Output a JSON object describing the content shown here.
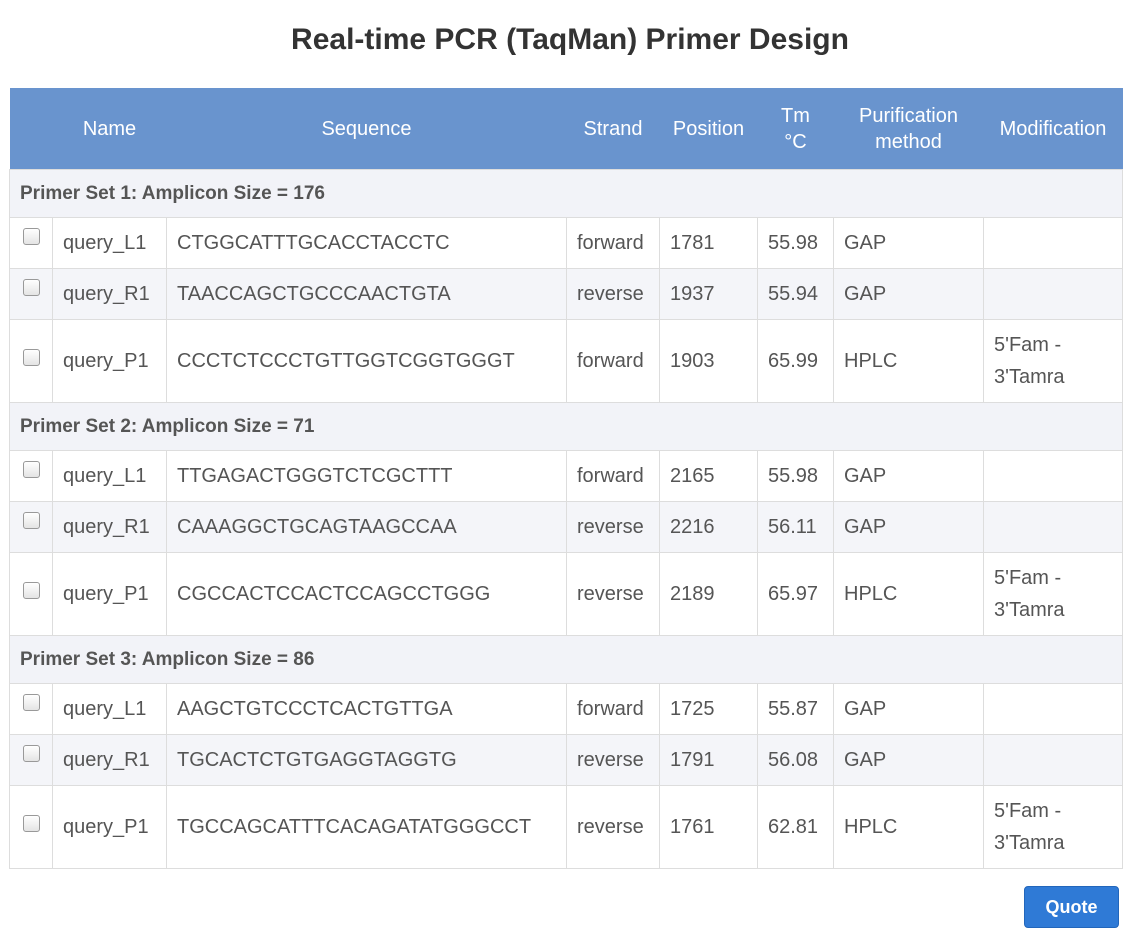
{
  "title": "Real-time PCR (TaqMan) Primer Design",
  "columns": {
    "name": "Name",
    "sequence": "Sequence",
    "strand": "Strand",
    "position": "Position",
    "tm_line1": "Tm",
    "tm_line2": "°C",
    "purification_line1": "Purification",
    "purification_line2": "method",
    "modification": "Modification"
  },
  "sets": [
    {
      "label": "Primer Set 1: Amplicon Size = 176",
      "rows": [
        {
          "name": "query_L1",
          "sequence": "CTGGCATTTGCACCTACCTC",
          "strand": "forward",
          "position": "1781",
          "tm": "55.98",
          "purification": "GAP",
          "mod1": "",
          "mod2": "",
          "checked": false
        },
        {
          "name": "query_R1",
          "sequence": "TAACCAGCTGCCCAACTGTA",
          "strand": "reverse",
          "position": "1937",
          "tm": "55.94",
          "purification": "GAP",
          "mod1": "",
          "mod2": "",
          "checked": false
        },
        {
          "name": "query_P1",
          "sequence": "CCCTCTCCCTGTTGGTCGGTGGGT",
          "strand": "forward",
          "position": "1903",
          "tm": "65.99",
          "purification": "HPLC",
          "mod1": "5'Fam -",
          "mod2": "3'Tamra",
          "checked": false
        }
      ]
    },
    {
      "label": "Primer Set 2: Amplicon Size = 71",
      "rows": [
        {
          "name": "query_L1",
          "sequence": "TTGAGACTGGGTCTCGCTTT",
          "strand": "forward",
          "position": "2165",
          "tm": "55.98",
          "purification": "GAP",
          "mod1": "",
          "mod2": "",
          "checked": false
        },
        {
          "name": "query_R1",
          "sequence": "CAAAGGCTGCAGTAAGCCAA",
          "strand": "reverse",
          "position": "2216",
          "tm": "56.11",
          "purification": "GAP",
          "mod1": "",
          "mod2": "",
          "checked": false
        },
        {
          "name": "query_P1",
          "sequence": "CGCCACTCCACTCCAGCCTGGG",
          "strand": "reverse",
          "position": "2189",
          "tm": "65.97",
          "purification": "HPLC",
          "mod1": "5'Fam -",
          "mod2": "3'Tamra",
          "checked": false
        }
      ]
    },
    {
      "label": "Primer Set 3: Amplicon Size = 86",
      "rows": [
        {
          "name": "query_L1",
          "sequence": "AAGCTGTCCCTCACTGTTGA",
          "strand": "forward",
          "position": "1725",
          "tm": "55.87",
          "purification": "GAP",
          "mod1": "",
          "mod2": "",
          "checked": false
        },
        {
          "name": "query_R1",
          "sequence": "TGCACTCTGTGAGGTAGGTG",
          "strand": "reverse",
          "position": "1791",
          "tm": "56.08",
          "purification": "GAP",
          "mod1": "",
          "mod2": "",
          "checked": false
        },
        {
          "name": "query_P1",
          "sequence": "TGCCAGCATTTCACAGATATGGGCCT",
          "strand": "reverse",
          "position": "1761",
          "tm": "62.81",
          "purification": "HPLC",
          "mod1": "5'Fam -",
          "mod2": "3'Tamra",
          "checked": false
        }
      ]
    }
  ],
  "quote_button": "Quote",
  "colors": {
    "header_bg": "#6994ce",
    "set_row_bg": "#f2f3f8",
    "button_bg": "#2f7ad6"
  }
}
